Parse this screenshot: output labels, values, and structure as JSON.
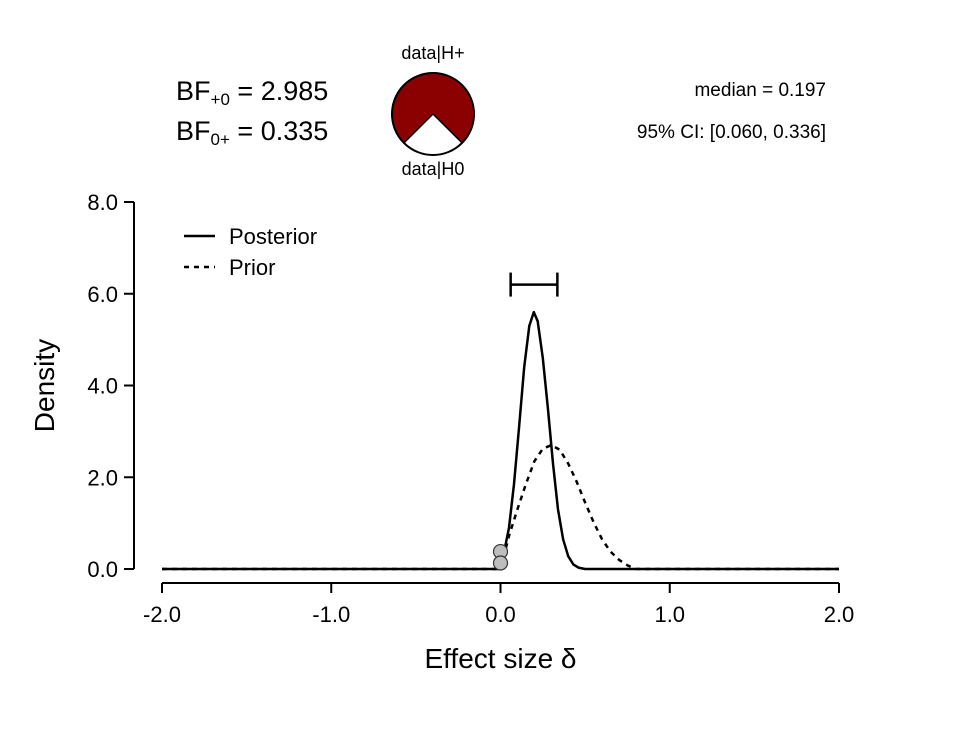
{
  "bayes_factor": {
    "bf_plus0_label": "BF",
    "bf_plus0_sub": "+0",
    "bf_plus0_value": "2.985",
    "bf_0plus_label": "BF",
    "bf_0plus_sub": "0+",
    "bf_0plus_value": "0.335"
  },
  "pie": {
    "top_label": "data|H+",
    "bottom_label": "data|H0",
    "h_plus_proportion": 0.749,
    "h_plus_color": "#8b0000",
    "h0_color": "#ffffff"
  },
  "summary": {
    "median_text": "median = 0.197",
    "ci_text": "95% CI: [0.060, 0.336]"
  },
  "chart_data": {
    "type": "line",
    "xlabel": "Effect size δ",
    "ylabel": "Density",
    "xlim": [
      -2.0,
      2.0
    ],
    "ylim": [
      0,
      8.0
    ],
    "x_ticks": [
      "-2.0",
      "-1.0",
      "0.0",
      "1.0",
      "2.0"
    ],
    "y_ticks": [
      "0.0",
      "2.0",
      "4.0",
      "6.0",
      "8.0"
    ],
    "legend_position": "top-left",
    "series": [
      {
        "name": "Posterior",
        "style": "solid",
        "x": [
          -2.0,
          0.0,
          0.02,
          0.05,
          0.08,
          0.11,
          0.14,
          0.17,
          0.197,
          0.22,
          0.25,
          0.28,
          0.31,
          0.34,
          0.37,
          0.4,
          0.43,
          0.46,
          0.5,
          2.0
        ],
        "y": [
          0.0,
          0.0,
          0.35,
          0.9,
          1.85,
          3.1,
          4.4,
          5.3,
          5.6,
          5.4,
          4.6,
          3.5,
          2.3,
          1.3,
          0.65,
          0.28,
          0.1,
          0.03,
          0.0,
          0.0
        ]
      },
      {
        "name": "Prior",
        "style": "dashed",
        "x": [
          -2.0,
          0.0,
          0.05,
          0.1,
          0.15,
          0.2,
          0.25,
          0.3,
          0.35,
          0.4,
          0.45,
          0.5,
          0.55,
          0.6,
          0.65,
          0.7,
          0.75,
          0.8,
          2.0
        ],
        "y": [
          0.0,
          0.0,
          0.72,
          1.3,
          1.85,
          2.35,
          2.62,
          2.7,
          2.6,
          2.3,
          1.9,
          1.45,
          1.02,
          0.65,
          0.38,
          0.2,
          0.08,
          0.0,
          0.0
        ]
      }
    ],
    "ci_interval": [
      0.06,
      0.336
    ],
    "ci_bar_y": 6.2,
    "points": [
      {
        "x": 0.0,
        "y": 0.38
      },
      {
        "x": 0.0,
        "y": 0.13
      }
    ]
  }
}
